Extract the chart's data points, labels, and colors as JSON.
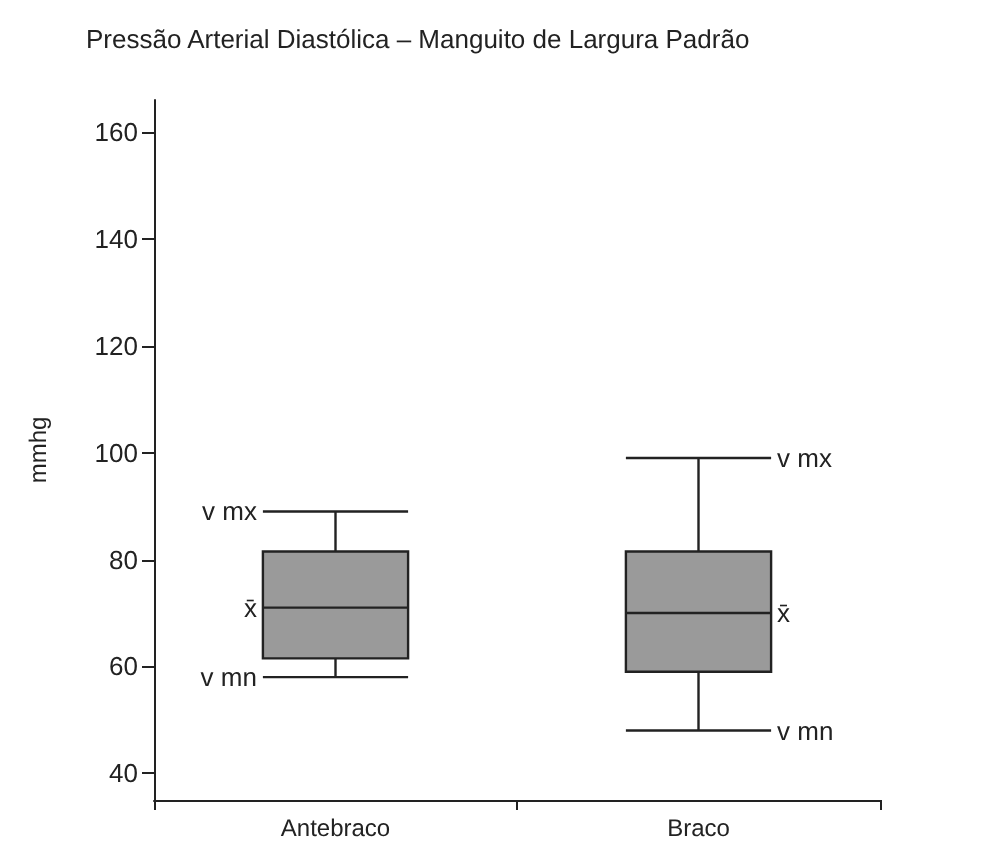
{
  "chart_data": {
    "type": "box",
    "title": "Pressão Arterial Diastólica – Manguito de Largura Padrão",
    "ylabel": "mmhg",
    "categories": [
      "Antebraco",
      "Braco"
    ],
    "boxes": [
      {
        "low": 58,
        "q1": 61.5,
        "median": 71,
        "q3": 81.5,
        "high": 89
      },
      {
        "low": 48,
        "q1": 59,
        "median": 70,
        "q3": 81.5,
        "high": 99
      }
    ],
    "color": "#9a9a9a",
    "ylim": [
      35,
      166
    ],
    "yticks": [
      40,
      60,
      80,
      100,
      120,
      140,
      160
    ],
    "grid": false,
    "annotations": [
      "v mx",
      "x̄",
      "v mn",
      "v mx",
      "x̄",
      "v mn"
    ]
  }
}
